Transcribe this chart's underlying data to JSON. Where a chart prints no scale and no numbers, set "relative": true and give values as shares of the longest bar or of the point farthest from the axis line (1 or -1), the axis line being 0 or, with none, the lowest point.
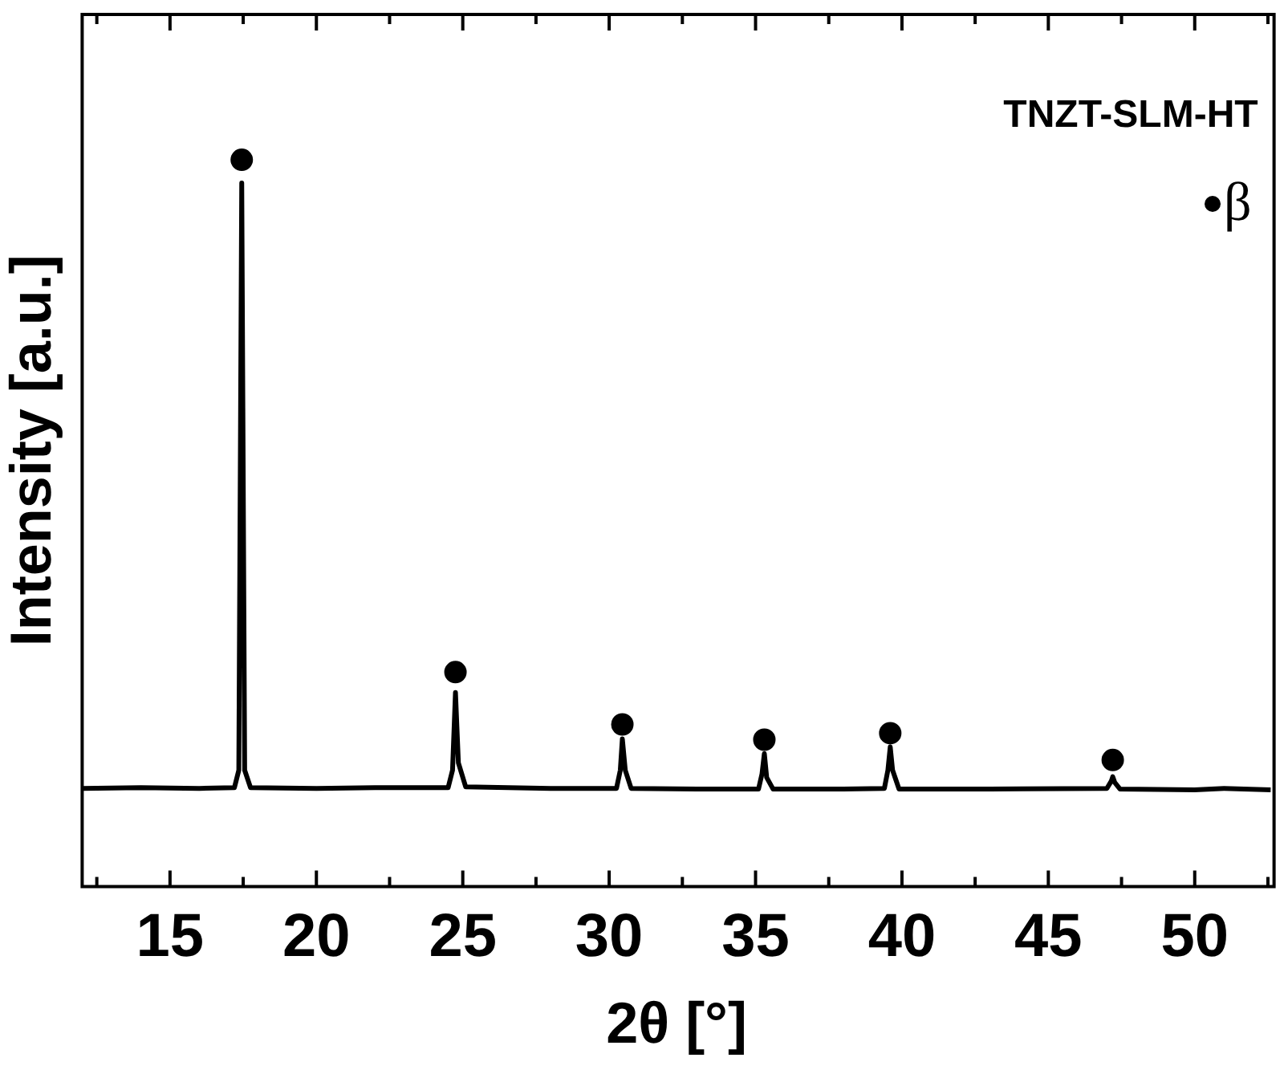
{
  "chart_data": {
    "type": "line",
    "xlabel": "2θ [°]",
    "ylabel": "Intensity [a.u.]",
    "annotations": [
      "TNZT-SLM-HT"
    ],
    "relative": true,
    "xlim": [
      12,
      52.6
    ],
    "xticks": [
      {
        "value": 12.5,
        "label": null
      },
      15,
      {
        "value": 17.5,
        "label": null
      },
      20,
      {
        "value": 22.5,
        "label": null
      },
      25,
      {
        "value": 27.5,
        "label": null
      },
      30,
      {
        "value": 32.5,
        "label": null
      },
      35,
      {
        "value": 37.5,
        "label": null
      },
      40,
      {
        "value": 42.5,
        "label": null
      },
      45,
      {
        "value": 47.5,
        "label": null
      },
      50,
      {
        "value": 52.5,
        "label": null
      }
    ],
    "legend": "top right",
    "grid": false,
    "line_style": "solid",
    "series": [
      {
        "type": "line",
        "color": "#000000",
        "marker": "none",
        "x": [
          12.0,
          14,
          16,
          17.2,
          17.35,
          17.45,
          17.55,
          17.75,
          20,
          22,
          24.5,
          24.65,
          24.75,
          24.85,
          25.1,
          28,
          30.25,
          30.38,
          30.45,
          30.55,
          30.75,
          33,
          35.1,
          35.22,
          35.3,
          35.38,
          35.6,
          38,
          39.4,
          39.52,
          39.6,
          39.68,
          39.9,
          43,
          47.0,
          47.15,
          47.2,
          47.27,
          47.45,
          50,
          51,
          52.6
        ],
        "values": [
          0.135,
          0.136,
          0.135,
          0.136,
          0.16,
          0.968,
          0.16,
          0.136,
          0.135,
          0.136,
          0.136,
          0.16,
          0.267,
          0.17,
          0.137,
          0.135,
          0.135,
          0.16,
          0.203,
          0.16,
          0.135,
          0.134,
          0.134,
          0.155,
          0.183,
          0.15,
          0.134,
          0.134,
          0.135,
          0.16,
          0.192,
          0.16,
          0.134,
          0.134,
          0.135,
          0.145,
          0.151,
          0.143,
          0.134,
          0.133,
          0.135,
          0.133
        ]
      },
      {
        "type": "scatter",
        "name": "β",
        "color": "#000000",
        "marker": "circle",
        "x": [
          17.45,
          24.75,
          30.45,
          35.3,
          39.6,
          47.2
        ],
        "values": [
          1,
          0.295,
          0.223,
          0.202,
          0.211,
          0.174
        ]
      }
    ]
  }
}
